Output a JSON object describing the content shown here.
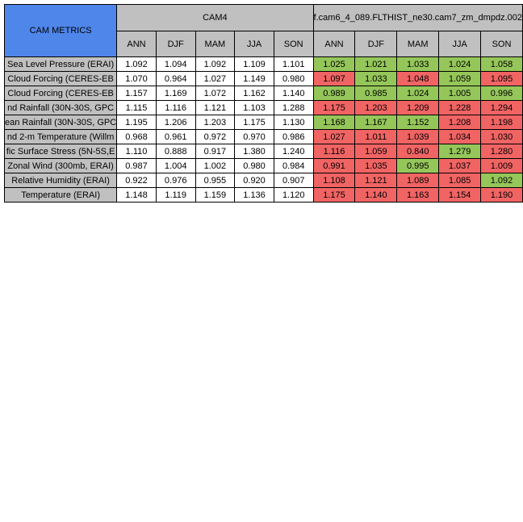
{
  "title": "CAM METRICS",
  "groups": [
    "CAM4",
    "f.cam6_4_089.FLTHIST_ne30.cam7_zm_dmpdz.002"
  ],
  "seasons": [
    "ANN",
    "DJF",
    "MAM",
    "JJA",
    "SON"
  ],
  "colors": {
    "title_bg": "#4f86ea",
    "header_bg": "#c0c0c0",
    "better": "#95c65a",
    "worse": "#f16464",
    "neutral": "#ffffff"
  },
  "rows": [
    {
      "label": "Sea Level Pressure (ERAI)",
      "cam4": [
        "1.092",
        "1.094",
        "1.092",
        "1.109",
        "1.101"
      ],
      "exp": [
        "1.025",
        "1.021",
        "1.033",
        "1.024",
        "1.058"
      ],
      "exp_status": [
        "green",
        "green",
        "green",
        "green",
        "green"
      ]
    },
    {
      "label": "Cloud Forcing (CERES-EB",
      "cam4": [
        "1.070",
        "0.964",
        "1.027",
        "1.149",
        "0.980"
      ],
      "exp": [
        "1.097",
        "1.033",
        "1.048",
        "1.059",
        "1.095"
      ],
      "exp_status": [
        "red",
        "green",
        "red",
        "green",
        "red"
      ]
    },
    {
      "label": "Cloud Forcing (CERES-EB",
      "cam4": [
        "1.157",
        "1.169",
        "1.072",
        "1.162",
        "1.140"
      ],
      "exp": [
        "0.989",
        "0.985",
        "1.024",
        "1.005",
        "0.996"
      ],
      "exp_status": [
        "green",
        "green",
        "green",
        "green",
        "green"
      ]
    },
    {
      "label": "nd Rainfall (30N-30S, GPC",
      "cam4": [
        "1.115",
        "1.116",
        "1.121",
        "1.103",
        "1.288"
      ],
      "exp": [
        "1.175",
        "1.203",
        "1.209",
        "1.228",
        "1.294"
      ],
      "exp_status": [
        "red",
        "red",
        "red",
        "red",
        "red"
      ]
    },
    {
      "label": "ean Rainfall (30N-30S, GPC",
      "cam4": [
        "1.195",
        "1.206",
        "1.203",
        "1.175",
        "1.130"
      ],
      "exp": [
        "1.168",
        "1.167",
        "1.152",
        "1.208",
        "1.198"
      ],
      "exp_status": [
        "green",
        "green",
        "green",
        "red",
        "red"
      ]
    },
    {
      "label": "nd 2-m Temperature (Willm",
      "cam4": [
        "0.968",
        "0.961",
        "0.972",
        "0.970",
        "0.986"
      ],
      "exp": [
        "1.027",
        "1.011",
        "1.039",
        "1.034",
        "1.030"
      ],
      "exp_status": [
        "red",
        "red",
        "red",
        "red",
        "red"
      ]
    },
    {
      "label": "fic Surface Stress (5N-5S,E",
      "cam4": [
        "1.110",
        "0.888",
        "0.917",
        "1.380",
        "1.240"
      ],
      "exp": [
        "1.116",
        "1.059",
        "0.840",
        "1.279",
        "1.280"
      ],
      "exp_status": [
        "red",
        "red",
        "red",
        "green",
        "red"
      ]
    },
    {
      "label": "Zonal Wind (300mb, ERAI)",
      "cam4": [
        "0.987",
        "1.004",
        "1.002",
        "0.980",
        "0.984"
      ],
      "exp": [
        "0.991",
        "1.035",
        "0.995",
        "1.037",
        "1.009"
      ],
      "exp_status": [
        "red",
        "red",
        "green",
        "red",
        "red"
      ]
    },
    {
      "label": "Relative Humidity (ERAI)",
      "cam4": [
        "0.922",
        "0.976",
        "0.955",
        "0.920",
        "0.907"
      ],
      "exp": [
        "1.108",
        "1.121",
        "1.089",
        "1.085",
        "1.092"
      ],
      "exp_status": [
        "red",
        "red",
        "red",
        "red",
        "green"
      ]
    },
    {
      "label": "Temperature (ERAI)",
      "cam4": [
        "1.148",
        "1.119",
        "1.159",
        "1.136",
        "1.120"
      ],
      "exp": [
        "1.175",
        "1.140",
        "1.163",
        "1.154",
        "1.190"
      ],
      "exp_status": [
        "red",
        "red",
        "red",
        "red",
        "red"
      ]
    }
  ]
}
